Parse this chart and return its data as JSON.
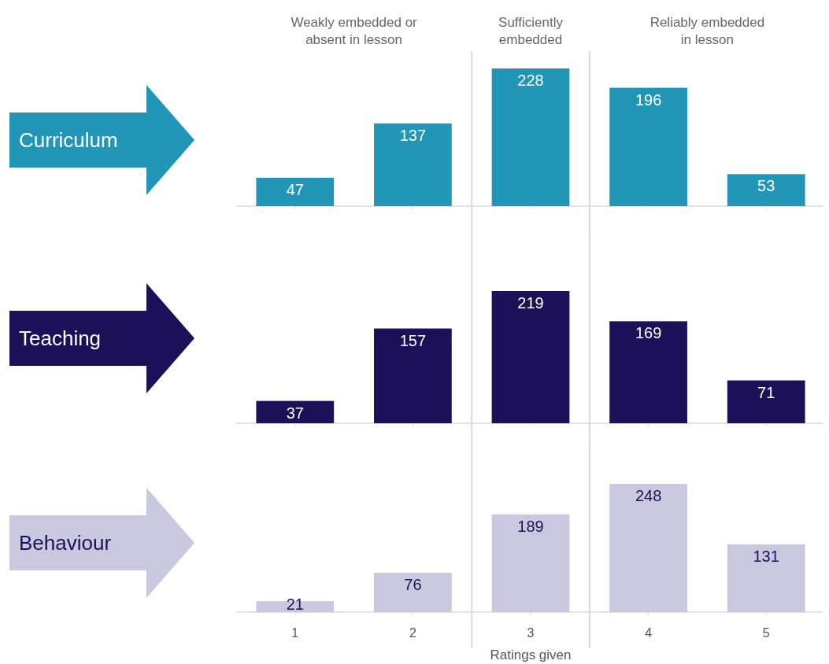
{
  "chart_data": [
    {
      "type": "bar",
      "x": [
        1,
        2,
        3,
        4,
        5
      ],
      "legend": "left",
      "xlim": [
        0.5,
        5.5
      ],
      "xticks": [
        1,
        2,
        3,
        4,
        5
      ],
      "data_labels": true,
      "tick_labels": false,
      "series": [
        {
          "name": "Curriculum",
          "color": "#2196b6",
          "values": [
            47,
            137,
            228,
            196,
            53
          ]
        }
      ],
      "ref_lines": [
        {
          "axis": "x",
          "value": 2.5
        },
        {
          "axis": "x",
          "value": 3.5
        }
      ],
      "annotations": [
        "Weakly embedded or absent in lesson",
        "Sufficiently embedded",
        "Reliably embedded in lesson"
      ]
    },
    {
      "type": "bar",
      "x": [
        1,
        2,
        3,
        4,
        5
      ],
      "legend": "left",
      "xlim": [
        0.5,
        5.5
      ],
      "xticks": [
        1,
        2,
        3,
        4,
        5
      ],
      "data_labels": true,
      "tick_labels": false,
      "series": [
        {
          "name": "Teaching",
          "color": "#1c1158",
          "values": [
            37,
            157,
            219,
            169,
            71
          ]
        }
      ],
      "ref_lines": [
        {
          "axis": "x",
          "value": 2.5
        },
        {
          "axis": "x",
          "value": 3.5
        }
      ]
    },
    {
      "type": "bar",
      "x": [
        1,
        2,
        3,
        4,
        5
      ],
      "legend": "left",
      "xlim": [
        0.5,
        5.5
      ],
      "xticks": [
        1,
        2,
        3,
        4,
        5
      ],
      "data_labels": true,
      "tick_labels": "x",
      "xlabel": "Ratings given",
      "series": [
        {
          "name": "Behaviour",
          "color": "#c8c8de",
          "values": [
            21,
            76,
            189,
            248,
            131
          ]
        }
      ],
      "ref_lines": [
        {
          "axis": "x",
          "value": 2.5
        },
        {
          "axis": "x",
          "value": 3.5
        }
      ]
    }
  ]
}
